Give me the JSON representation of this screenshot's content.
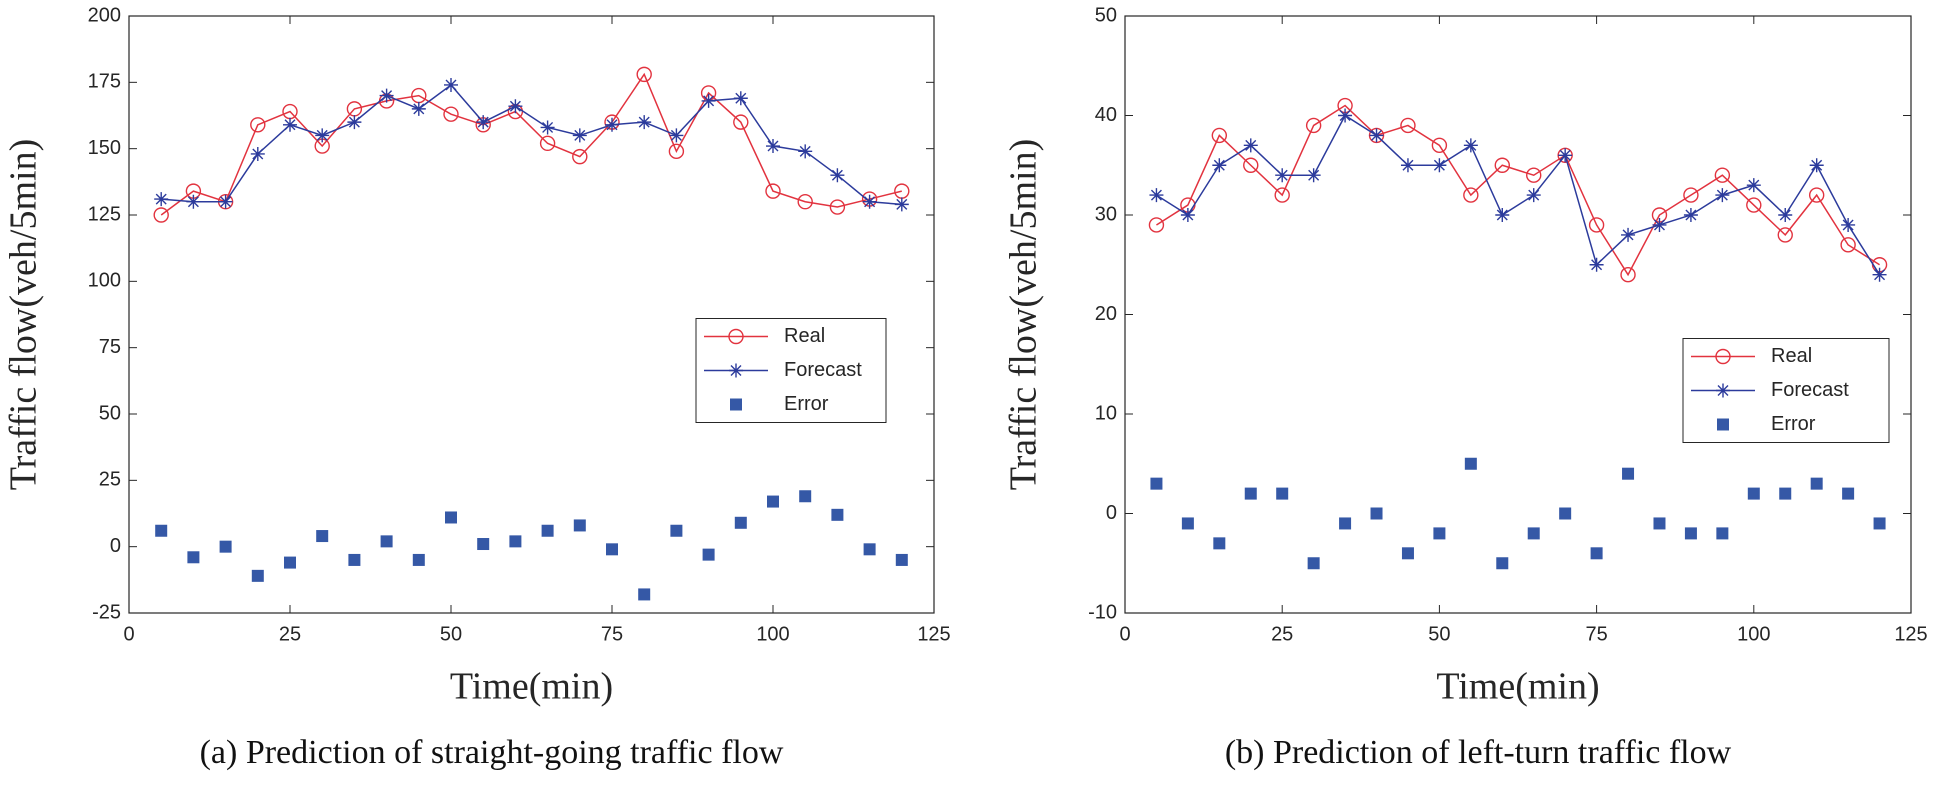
{
  "chart_data": [
    {
      "type": "line",
      "caption": "(a) Prediction of straight-going traffic flow",
      "xlabel": "Time(min)",
      "ylabel": "Traffic flow(veh/5min)",
      "x": [
        5,
        10,
        15,
        20,
        25,
        30,
        35,
        40,
        45,
        50,
        55,
        60,
        65,
        70,
        75,
        80,
        85,
        90,
        95,
        100,
        105,
        110,
        115,
        120
      ],
      "series": [
        {
          "name": "Real",
          "color": "#e2333f",
          "marker": "circle",
          "line": true,
          "values": [
            125,
            134,
            130,
            159,
            164,
            151,
            165,
            168,
            170,
            163,
            159,
            164,
            152,
            147,
            160,
            178,
            149,
            171,
            160,
            134,
            130,
            128,
            131,
            134
          ]
        },
        {
          "name": "Forecast",
          "color": "#2c3b9c",
          "marker": "star",
          "line": true,
          "values": [
            131,
            130,
            130,
            148,
            159,
            155,
            160,
            170,
            165,
            174,
            160,
            166,
            158,
            155,
            159,
            160,
            155,
            168,
            169,
            151,
            149,
            140,
            130,
            129
          ]
        },
        {
          "name": "Error",
          "color": "#3558a6",
          "marker": "square",
          "line": false,
          "values": [
            6,
            -4,
            0,
            -11,
            -6,
            4,
            -5,
            2,
            -5,
            11,
            1,
            2,
            6,
            8,
            -1,
            -18,
            6,
            -3,
            9,
            17,
            19,
            12,
            -1,
            -5
          ]
        }
      ],
      "xlim": [
        0,
        125
      ],
      "xticks": [
        0,
        25,
        50,
        75,
        100,
        125
      ],
      "ylim": [
        -25,
        200
      ],
      "yticks": [
        -25,
        0,
        25,
        50,
        75,
        100,
        125,
        150,
        175,
        200
      ],
      "legend": "east",
      "grid": false
    },
    {
      "type": "line",
      "caption": "(b) Prediction of left-turn traffic flow",
      "xlabel": "Time(min)",
      "ylabel": "Traffic flow(veh/5min)",
      "x": [
        5,
        10,
        15,
        20,
        25,
        30,
        35,
        40,
        45,
        50,
        55,
        60,
        65,
        70,
        75,
        80,
        85,
        90,
        95,
        100,
        105,
        110,
        115,
        120
      ],
      "series": [
        {
          "name": "Real",
          "color": "#e2333f",
          "marker": "circle",
          "line": true,
          "values": [
            29,
            31,
            38,
            35,
            32,
            39,
            41,
            38,
            39,
            37,
            32,
            35,
            34,
            36,
            29,
            24,
            30,
            32,
            34,
            31,
            28,
            32,
            27,
            25
          ]
        },
        {
          "name": "Forecast",
          "color": "#2c3b9c",
          "marker": "star",
          "line": true,
          "values": [
            32,
            30,
            35,
            37,
            34,
            34,
            40,
            38,
            35,
            35,
            37,
            30,
            32,
            36,
            25,
            28,
            29,
            30,
            32,
            33,
            30,
            35,
            29,
            24
          ]
        },
        {
          "name": "Error",
          "color": "#3558a6",
          "marker": "square",
          "line": false,
          "values": [
            3,
            -1,
            -3,
            2,
            2,
            -5,
            -1,
            0,
            -4,
            -2,
            5,
            -5,
            -2,
            0,
            -4,
            4,
            -1,
            -2,
            -2,
            2,
            2,
            3,
            2,
            -1
          ]
        }
      ],
      "xlim": [
        0,
        125
      ],
      "xticks": [
        0,
        25,
        50,
        75,
        100,
        125
      ],
      "ylim": [
        -10,
        50
      ],
      "yticks": [
        -10,
        0,
        10,
        20,
        30,
        40,
        50
      ],
      "legend": "east",
      "grid": false
    }
  ]
}
